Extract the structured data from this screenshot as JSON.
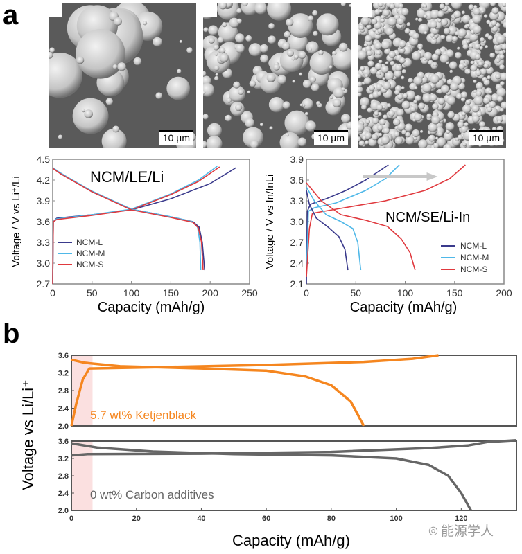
{
  "panel_labels": {
    "a": "a",
    "b": "b"
  },
  "sem_images": [
    {
      "name": "NCM-L",
      "scale_bar": "10 µm"
    },
    {
      "name": "NCM-M",
      "scale_bar": "10 µm"
    },
    {
      "name": "NCM-S",
      "scale_bar": "10 µm"
    }
  ],
  "watermark": "能源学人",
  "colors": {
    "NCM-L": "#3a3a8c",
    "NCM-M": "#4fb8e8",
    "NCM-S": "#e0393e",
    "ketjen": "#f5861f",
    "carbon0": "#666666",
    "shade": "#fbe0e0"
  },
  "chart_data": [
    {
      "type": "line",
      "title": "NCM/LE/Li",
      "xlabel": "Capacity (mAh/g)",
      "ylabel": "Voltage / V vs Li⁺/Li",
      "xlim": [
        0,
        250
      ],
      "ylim": [
        2.7,
        4.5
      ],
      "xticks": [
        "0",
        "50",
        "100",
        "150",
        "200",
        "250"
      ],
      "yticks": [
        "2.7",
        "3.0",
        "3.3",
        "3.6",
        "3.9",
        "4.2",
        "4.5"
      ],
      "legend": {
        "placement": "bottom-left",
        "entries": [
          "NCM-L",
          "NCM-M",
          "NCM-S"
        ]
      },
      "series": [
        {
          "name": "NCM-L",
          "segment": "charge",
          "points": [
            [
              0,
              2.7
            ],
            [
              0.8,
              3.6
            ],
            [
              5,
              3.65
            ],
            [
              50,
              3.7
            ],
            [
              100,
              3.77
            ],
            [
              150,
              3.93
            ],
            [
              200,
              4.15
            ],
            [
              233,
              4.38
            ]
          ]
        },
        {
          "name": "NCM-M",
          "segment": "charge",
          "points": [
            [
              0,
              2.7
            ],
            [
              0.8,
              3.6
            ],
            [
              5,
              3.64
            ],
            [
              50,
              3.7
            ],
            [
              100,
              3.78
            ],
            [
              150,
              4.0
            ],
            [
              185,
              4.2
            ],
            [
              209,
              4.4
            ]
          ]
        },
        {
          "name": "NCM-S",
          "segment": "charge",
          "points": [
            [
              0,
              2.7
            ],
            [
              0.8,
              3.6
            ],
            [
              5,
              3.63
            ],
            [
              50,
              3.69
            ],
            [
              100,
              3.77
            ],
            [
              150,
              3.99
            ],
            [
              185,
              4.18
            ],
            [
              212,
              4.39
            ]
          ]
        },
        {
          "name": "NCM-L",
          "segment": "discharge",
          "points": [
            [
              0,
              4.38
            ],
            [
              10,
              4.3
            ],
            [
              50,
              4.03
            ],
            [
              100,
              3.78
            ],
            [
              150,
              3.67
            ],
            [
              178,
              3.6
            ],
            [
              186,
              3.52
            ],
            [
              190,
              3.3
            ],
            [
              193,
              2.9
            ]
          ]
        },
        {
          "name": "NCM-M",
          "segment": "discharge",
          "points": [
            [
              0,
              4.38
            ],
            [
              10,
              4.3
            ],
            [
              50,
              4.04
            ],
            [
              100,
              3.78
            ],
            [
              150,
              3.67
            ],
            [
              177,
              3.6
            ],
            [
              184,
              3.52
            ],
            [
              187,
              3.3
            ],
            [
              188,
              2.9
            ]
          ]
        },
        {
          "name": "NCM-S",
          "segment": "discharge",
          "points": [
            [
              0,
              4.37
            ],
            [
              10,
              4.29
            ],
            [
              50,
              4.03
            ],
            [
              100,
              3.77
            ],
            [
              150,
              3.66
            ],
            [
              178,
              3.59
            ],
            [
              185,
              3.51
            ],
            [
              189,
              3.3
            ],
            [
              191,
              2.9
            ]
          ]
        }
      ]
    },
    {
      "type": "line",
      "title": "NCM/SE/Li-In",
      "xlabel": "Capacity (mAh/g)",
      "ylabel": "Voltage / V vs In/InLi",
      "xlim": [
        0,
        200
      ],
      "ylim": [
        2.1,
        3.9
      ],
      "xticks": [
        "0",
        "50",
        "100",
        "150",
        "200"
      ],
      "yticks": [
        "2.1",
        "2.4",
        "2.7",
        "3.0",
        "3.3",
        "3.6",
        "3.9"
      ],
      "legend": {
        "placement": "bottom-right",
        "entries": [
          "NCM-L",
          "NCM-M",
          "NCM-S"
        ]
      },
      "annotation": {
        "type": "arrow",
        "from": [
          57,
          3.65
        ],
        "to": [
          133,
          3.65
        ]
      },
      "series": [
        {
          "name": "NCM-L",
          "segment": "charge",
          "points": [
            [
              0,
              2.1
            ],
            [
              1,
              3.15
            ],
            [
              4,
              3.25
            ],
            [
              20,
              3.33
            ],
            [
              40,
              3.45
            ],
            [
              60,
              3.6
            ],
            [
              83,
              3.82
            ]
          ]
        },
        {
          "name": "NCM-M",
          "segment": "charge",
          "points": [
            [
              0,
              2.2
            ],
            [
              2,
              3.15
            ],
            [
              8,
              3.2
            ],
            [
              30,
              3.27
            ],
            [
              60,
              3.45
            ],
            [
              80,
              3.62
            ],
            [
              94,
              3.82
            ]
          ]
        },
        {
          "name": "NCM-S",
          "segment": "charge",
          "points": [
            [
              0,
              2.2
            ],
            [
              3,
              2.9
            ],
            [
              6,
              3.12
            ],
            [
              30,
              3.18
            ],
            [
              80,
              3.3
            ],
            [
              120,
              3.45
            ],
            [
              145,
              3.62
            ],
            [
              161,
              3.82
            ]
          ]
        },
        {
          "name": "NCM-L",
          "segment": "discharge",
          "points": [
            [
              0,
              3.45
            ],
            [
              3,
              3.25
            ],
            [
              10,
              3.05
            ],
            [
              22,
              2.92
            ],
            [
              33,
              2.78
            ],
            [
              39,
              2.6
            ],
            [
              42,
              2.3
            ]
          ]
        },
        {
          "name": "NCM-M",
          "segment": "discharge",
          "points": [
            [
              0,
              3.5
            ],
            [
              8,
              3.3
            ],
            [
              20,
              3.1
            ],
            [
              35,
              3.0
            ],
            [
              47,
              2.9
            ],
            [
              52,
              2.7
            ],
            [
              55,
              2.3
            ]
          ]
        },
        {
          "name": "NCM-S",
          "segment": "discharge",
          "points": [
            [
              0,
              3.56
            ],
            [
              15,
              3.3
            ],
            [
              35,
              3.1
            ],
            [
              60,
              3.02
            ],
            [
              82,
              2.93
            ],
            [
              96,
              2.75
            ],
            [
              105,
              2.55
            ],
            [
              110,
              2.3
            ]
          ]
        }
      ]
    },
    {
      "type": "line",
      "label": "5.7 wt% Ketjenblack",
      "xlabel": "Capacity (mAh/g)",
      "ylabel": "Voltage vs Li/Li⁺",
      "xlim": [
        0,
        137
      ],
      "ylim": [
        2.0,
        3.6
      ],
      "xticks": [
        "0",
        "20",
        "40",
        "60",
        "80",
        "100",
        "120"
      ],
      "yticks": [
        "2.0",
        "2.4",
        "2.8",
        "3.2",
        "3.6"
      ],
      "shaded_region_x": [
        0,
        6.5
      ],
      "series": [
        {
          "name": "5.7 wt% Ketjenblack",
          "segment": "charge",
          "points": [
            [
              0,
              2.0
            ],
            [
              1.5,
              2.5
            ],
            [
              3.5,
              3.05
            ],
            [
              5.5,
              3.3
            ],
            [
              20,
              3.32
            ],
            [
              60,
              3.38
            ],
            [
              90,
              3.45
            ],
            [
              105,
              3.52
            ],
            [
              113,
              3.6
            ]
          ]
        },
        {
          "name": "5.7 wt% Ketjenblack",
          "segment": "discharge",
          "points": [
            [
              0,
              3.5
            ],
            [
              4,
              3.43
            ],
            [
              15,
              3.35
            ],
            [
              40,
              3.3
            ],
            [
              60,
              3.25
            ],
            [
              72,
              3.12
            ],
            [
              80,
              2.92
            ],
            [
              86,
              2.55
            ],
            [
              90,
              2.0
            ]
          ]
        }
      ]
    },
    {
      "type": "line",
      "label": "0 wt% Carbon additives",
      "xlabel": "Capacity (mAh/g)",
      "ylabel": "Voltage vs Li/Li⁺",
      "xlim": [
        0,
        137
      ],
      "ylim": [
        2.0,
        3.6
      ],
      "xticks": [
        "0",
        "20",
        "40",
        "60",
        "80",
        "100",
        "120"
      ],
      "yticks": [
        "2.0",
        "2.4",
        "2.8",
        "3.2",
        "3.6"
      ],
      "shaded_region_x": [
        0,
        6.5
      ],
      "series": [
        {
          "name": "0 wt% Carbon additives",
          "segment": "charge",
          "points": [
            [
              0,
              3.27
            ],
            [
              5,
              3.3
            ],
            [
              40,
              3.31
            ],
            [
              80,
              3.35
            ],
            [
              110,
              3.44
            ],
            [
              122,
              3.5
            ],
            [
              128,
              3.58
            ],
            [
              137,
              3.62
            ]
          ]
        },
        {
          "name": "0 wt% Carbon additives",
          "segment": "discharge",
          "points": [
            [
              0,
              3.55
            ],
            [
              8,
              3.45
            ],
            [
              25,
              3.36
            ],
            [
              50,
              3.3
            ],
            [
              80,
              3.27
            ],
            [
              100,
              3.2
            ],
            [
              110,
              3.05
            ],
            [
              116,
              2.8
            ],
            [
              120,
              2.4
            ],
            [
              123,
              2.0
            ]
          ]
        }
      ]
    }
  ]
}
